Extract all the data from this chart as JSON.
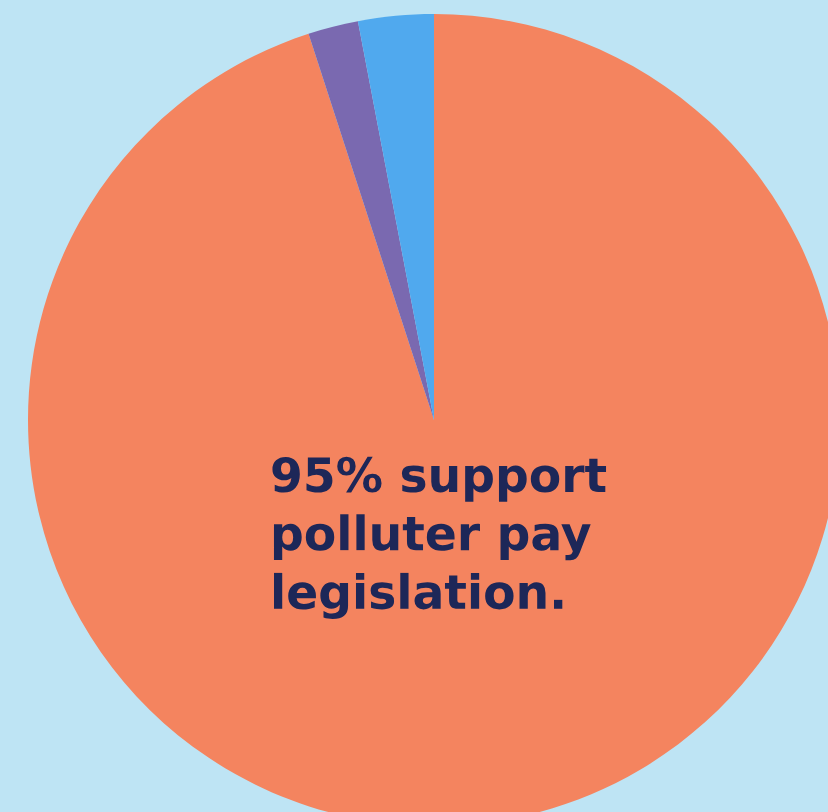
{
  "chart_data": {
    "type": "pie",
    "categories": [
      null,
      null,
      null
    ],
    "values": [
      95,
      2,
      3
    ],
    "colors": [
      "#f4845f",
      "#7a69b0",
      "#50a9ee"
    ],
    "annotations": [
      "95% support\npolluter pay\nlegislation."
    ],
    "legend": false
  }
}
